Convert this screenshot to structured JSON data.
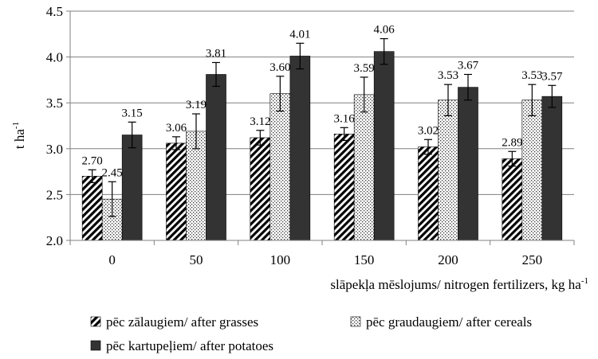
{
  "chart_data": {
    "type": "bar",
    "categories": [
      "0",
      "50",
      "100",
      "150",
      "200",
      "250"
    ],
    "series": [
      {
        "name": "pēc zālaugiem/ after grasses",
        "pattern": "diagonal",
        "values": [
          2.7,
          3.06,
          3.12,
          3.16,
          3.02,
          2.89
        ],
        "labels": [
          "2.70",
          "3.06",
          "3.12",
          "3.16",
          "3.02",
          "2.89"
        ],
        "errors": [
          0.07,
          0.07,
          0.08,
          0.07,
          0.08,
          0.08
        ]
      },
      {
        "name": "pēc graudaugiem/ after cereals",
        "pattern": "dots",
        "values": [
          2.45,
          3.19,
          3.6,
          3.59,
          3.53,
          3.53
        ],
        "labels": [
          "2.45",
          "3.19",
          "3.60",
          "3.59",
          "3.53",
          "3.53"
        ],
        "errors": [
          0.19,
          0.19,
          0.19,
          0.19,
          0.17,
          0.17
        ]
      },
      {
        "name": "pēc kartupeļiem/ after potatoes",
        "pattern": "solid",
        "values": [
          3.15,
          3.81,
          4.01,
          4.06,
          3.67,
          3.57
        ],
        "labels": [
          "3.15",
          "3.81",
          "4.01",
          "4.06",
          "3.67",
          "3.57"
        ],
        "errors": [
          0.14,
          0.13,
          0.14,
          0.14,
          0.14,
          0.12
        ]
      }
    ],
    "ylabel_base": "t ha",
    "ylabel_sup": "-1",
    "xlabel_base": "slāpekļa mēslojums/ nitrogen fertilizers, kg ha",
    "xlabel_sup": "-1",
    "ylim": [
      2.0,
      4.5
    ],
    "yticks": [
      "2.0",
      "2.5",
      "3.0",
      "3.5",
      "4.0",
      "4.5"
    ],
    "grid": true,
    "legend_position": "bottom",
    "colors": {
      "bar_dark": "#333333",
      "grid": "#808080",
      "axis": "#808080",
      "error": "#000000"
    }
  }
}
